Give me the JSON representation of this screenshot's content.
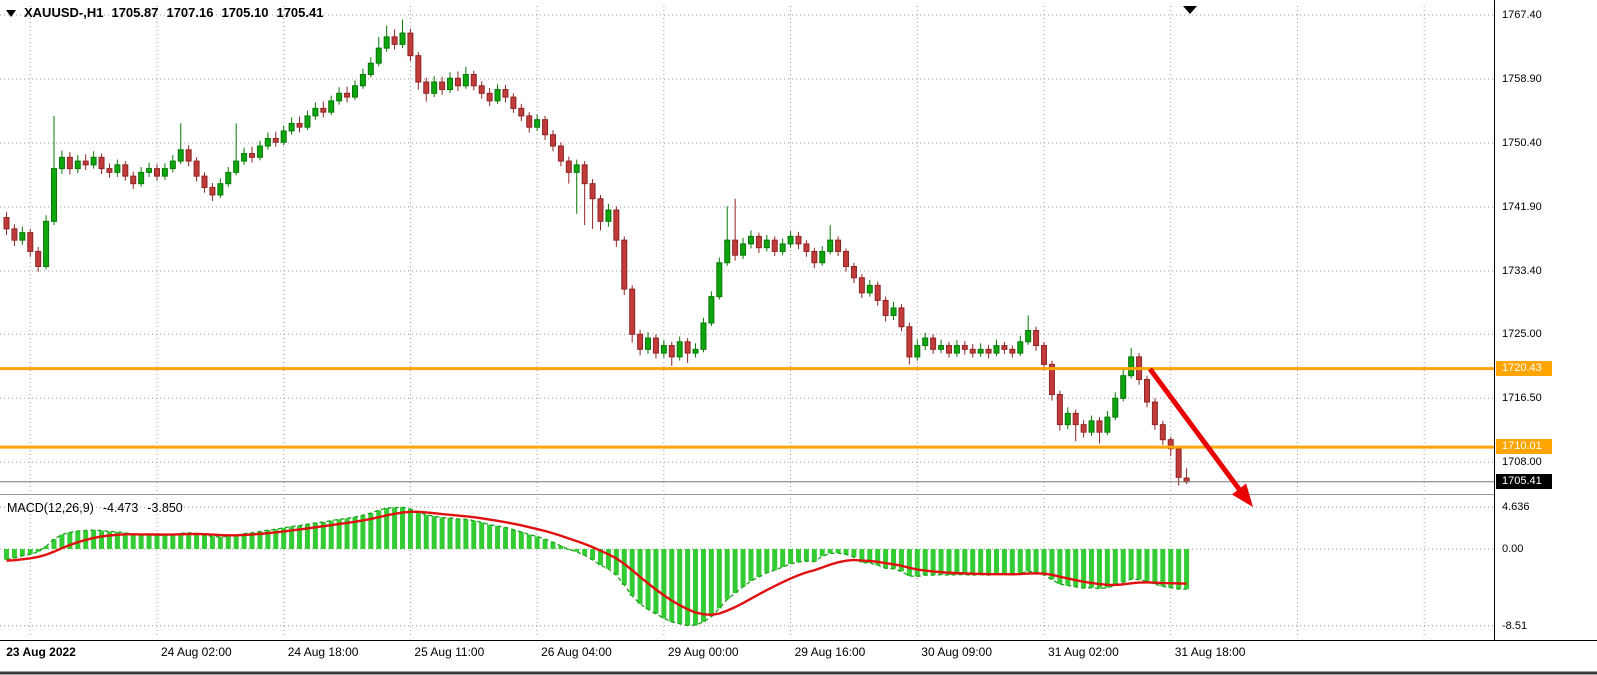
{
  "header": {
    "symbol_period": "XAUUSD-,H1",
    "open": "1705.87",
    "high": "1707.16",
    "low": "1705.10",
    "close": "1705.41"
  },
  "macd_panel": {
    "title": "MACD(12,26,9)",
    "macd_value": "-4.473",
    "signal_value": "-3.850"
  },
  "colors": {
    "bull": "#0FA50F",
    "bull_dark": "#067806",
    "bear": "#C13B3B",
    "bear_dark": "#8F2525",
    "histogram": "#33CC33",
    "signal_line": "#E01010",
    "macd_line": "#1E9E1E",
    "level": "#FFA500",
    "bid_line": "#777777",
    "bid_box": "#000000",
    "grid": "#9A9A9A",
    "arrow": "#E80202",
    "axis_border": "#000000",
    "splitter": "#999999"
  },
  "annotations": {
    "trend_arrow": {
      "from": [
        1150,
        369
      ],
      "to": [
        1239,
        489
      ],
      "tip": [
        1253,
        507
      ]
    }
  },
  "chart_data": {
    "type": "candlestick",
    "title": "XAUUSD-,H1",
    "symbol": "XAUUSD",
    "timeframe": "H1",
    "current_ohlc": {
      "open": 1705.87,
      "high": 1707.16,
      "low": 1705.1,
      "close": 1705.41
    },
    "price_axis": {
      "labels": [
        "1767.40",
        "1758.90",
        "1750.40",
        "1741.90",
        "1733.40",
        "1725.00",
        "1716.50",
        "1708.00"
      ],
      "values": [
        1767.4,
        1758.9,
        1750.4,
        1741.9,
        1733.4,
        1725.0,
        1716.5,
        1708.0
      ]
    },
    "time_axis": [
      {
        "label": "23 Aug 2022",
        "index": 3,
        "bold": true
      },
      {
        "label": "24 Aug 02:00",
        "index": 19
      },
      {
        "label": "24 Aug 18:00",
        "index": 35
      },
      {
        "label": "25 Aug 11:00",
        "index": 51
      },
      {
        "label": "26 Aug 04:00",
        "index": 67
      },
      {
        "label": "29 Aug 00:00",
        "index": 83
      },
      {
        "label": "29 Aug 16:00",
        "index": 99
      },
      {
        "label": "30 Aug 09:00",
        "index": 115
      },
      {
        "label": "31 Aug 02:00",
        "index": 131
      },
      {
        "label": "31 Aug 18:00",
        "index": 147
      },
      {
        "label": "",
        "index": 163
      },
      {
        "label": "",
        "index": 179
      }
    ],
    "levels": [
      {
        "label": "1720.43",
        "value": 1720.43
      },
      {
        "label": "1710.01",
        "value": 1710.01
      }
    ],
    "current_price": {
      "label": "1705.41",
      "value": 1705.41
    },
    "candles_ohlc": [
      [
        1740.5,
        1741.2,
        1738.2,
        1739.0
      ],
      [
        1739.0,
        1739.6,
        1736.7,
        1737.5
      ],
      [
        1737.5,
        1739.3,
        1736.9,
        1738.5
      ],
      [
        1738.5,
        1739.0,
        1735.3,
        1736.0
      ],
      [
        1736.0,
        1736.6,
        1733.3,
        1734.0
      ],
      [
        1734.0,
        1740.8,
        1733.6,
        1740.0
      ],
      [
        1740.0,
        1754.0,
        1739.5,
        1747.0
      ],
      [
        1747.0,
        1749.4,
        1746.3,
        1748.5
      ],
      [
        1748.5,
        1749.2,
        1746.2,
        1747.0
      ],
      [
        1747.0,
        1748.8,
        1746.4,
        1748.0
      ],
      [
        1748.0,
        1748.9,
        1746.8,
        1747.5
      ],
      [
        1747.5,
        1749.3,
        1747.0,
        1748.5
      ],
      [
        1748.5,
        1749.0,
        1746.3,
        1747.0
      ],
      [
        1747.0,
        1747.7,
        1745.8,
        1746.5
      ],
      [
        1746.5,
        1748.2,
        1745.9,
        1747.5
      ],
      [
        1747.5,
        1748.0,
        1745.4,
        1746.0
      ],
      [
        1746.0,
        1746.6,
        1744.3,
        1745.0
      ],
      [
        1745.0,
        1747.2,
        1744.6,
        1746.5
      ],
      [
        1746.5,
        1747.8,
        1745.9,
        1747.0
      ],
      [
        1747.0,
        1747.6,
        1745.4,
        1746.0
      ],
      [
        1746.0,
        1747.7,
        1745.5,
        1747.0
      ],
      [
        1747.0,
        1748.8,
        1746.5,
        1748.0
      ],
      [
        1748.0,
        1753.0,
        1747.6,
        1749.5
      ],
      [
        1749.5,
        1750.1,
        1747.3,
        1748.0
      ],
      [
        1748.0,
        1748.5,
        1745.3,
        1746.0
      ],
      [
        1746.0,
        1746.5,
        1743.8,
        1744.5
      ],
      [
        1744.5,
        1745.1,
        1742.7,
        1743.5
      ],
      [
        1743.5,
        1745.7,
        1743.1,
        1745.0
      ],
      [
        1745.0,
        1747.2,
        1744.6,
        1746.5
      ],
      [
        1746.5,
        1753.0,
        1746.1,
        1748.0
      ],
      [
        1748.0,
        1749.8,
        1747.5,
        1749.0
      ],
      [
        1749.0,
        1749.9,
        1747.8,
        1748.5
      ],
      [
        1748.5,
        1750.7,
        1748.1,
        1750.0
      ],
      [
        1750.0,
        1751.8,
        1749.5,
        1751.0
      ],
      [
        1751.0,
        1751.9,
        1749.9,
        1750.5
      ],
      [
        1750.5,
        1752.7,
        1750.1,
        1752.0
      ],
      [
        1752.0,
        1753.8,
        1751.5,
        1753.0
      ],
      [
        1753.0,
        1753.9,
        1751.8,
        1752.5
      ],
      [
        1752.5,
        1754.7,
        1752.1,
        1754.0
      ],
      [
        1754.0,
        1755.8,
        1753.5,
        1755.0
      ],
      [
        1755.0,
        1755.9,
        1753.8,
        1754.5
      ],
      [
        1754.5,
        1756.7,
        1754.1,
        1756.0
      ],
      [
        1756.0,
        1757.8,
        1755.5,
        1757.0
      ],
      [
        1757.0,
        1757.9,
        1755.8,
        1756.5
      ],
      [
        1756.5,
        1758.7,
        1756.1,
        1758.0
      ],
      [
        1758.0,
        1760.3,
        1757.6,
        1759.5
      ],
      [
        1759.5,
        1761.8,
        1759.1,
        1761.0
      ],
      [
        1761.0,
        1764.5,
        1760.6,
        1763.0
      ],
      [
        1763.0,
        1766.0,
        1762.5,
        1764.5
      ],
      [
        1764.5,
        1765.5,
        1762.8,
        1763.5
      ],
      [
        1763.5,
        1766.8,
        1763.0,
        1765.0
      ],
      [
        1765.0,
        1765.6,
        1761.3,
        1762.0
      ],
      [
        1762.0,
        1762.5,
        1757.5,
        1758.5
      ],
      [
        1758.5,
        1759.1,
        1755.9,
        1757.0
      ],
      [
        1757.0,
        1759.3,
        1756.5,
        1758.5
      ],
      [
        1758.5,
        1759.2,
        1756.8,
        1757.5
      ],
      [
        1757.5,
        1759.8,
        1757.0,
        1759.0
      ],
      [
        1759.0,
        1759.9,
        1757.3,
        1758.0
      ],
      [
        1758.0,
        1760.5,
        1757.6,
        1759.5
      ],
      [
        1759.5,
        1760.0,
        1757.4,
        1758.0
      ],
      [
        1758.0,
        1758.6,
        1756.3,
        1757.0
      ],
      [
        1757.0,
        1757.7,
        1755.3,
        1756.0
      ],
      [
        1756.0,
        1758.2,
        1755.6,
        1757.5
      ],
      [
        1757.5,
        1758.1,
        1755.8,
        1756.5
      ],
      [
        1756.5,
        1757.0,
        1754.4,
        1755.0
      ],
      [
        1755.0,
        1755.6,
        1753.3,
        1754.0
      ],
      [
        1754.0,
        1754.5,
        1751.8,
        1752.5
      ],
      [
        1752.5,
        1754.2,
        1752.0,
        1753.5
      ],
      [
        1753.5,
        1754.0,
        1750.8,
        1751.5
      ],
      [
        1751.5,
        1752.1,
        1749.3,
        1750.0
      ],
      [
        1750.0,
        1750.5,
        1747.3,
        1748.0
      ],
      [
        1748.0,
        1748.6,
        1745.0,
        1746.5
      ],
      [
        1746.5,
        1748.2,
        1741.0,
        1747.5
      ],
      [
        1747.5,
        1748.0,
        1739.5,
        1745.0
      ],
      [
        1745.0,
        1745.6,
        1739.0,
        1743.0
      ],
      [
        1743.0,
        1743.5,
        1738.8,
        1740.0
      ],
      [
        1740.0,
        1742.3,
        1739.3,
        1741.5
      ],
      [
        1741.5,
        1742.0,
        1736.6,
        1737.5
      ],
      [
        1737.5,
        1738.0,
        1730.2,
        1731.0
      ],
      [
        1731.0,
        1731.5,
        1723.9,
        1725.0
      ],
      [
        1725.0,
        1725.6,
        1722.2,
        1723.0
      ],
      [
        1723.0,
        1725.3,
        1722.4,
        1724.5
      ],
      [
        1724.5,
        1725.0,
        1721.8,
        1722.5
      ],
      [
        1722.5,
        1724.2,
        1721.9,
        1723.5
      ],
      [
        1723.5,
        1724.0,
        1720.8,
        1722.0
      ],
      [
        1722.0,
        1724.7,
        1721.5,
        1724.0
      ],
      [
        1724.0,
        1724.5,
        1721.2,
        1722.5
      ],
      [
        1722.5,
        1723.8,
        1721.9,
        1723.0
      ],
      [
        1723.0,
        1727.2,
        1722.6,
        1726.5
      ],
      [
        1726.5,
        1730.7,
        1726.1,
        1730.0
      ],
      [
        1730.0,
        1735.2,
        1729.6,
        1734.5
      ],
      [
        1734.5,
        1742.0,
        1734.1,
        1737.5
      ],
      [
        1737.5,
        1743.0,
        1734.8,
        1735.5
      ],
      [
        1735.5,
        1737.8,
        1735.0,
        1737.0
      ],
      [
        1737.0,
        1738.8,
        1736.4,
        1738.0
      ],
      [
        1738.0,
        1738.5,
        1735.8,
        1736.5
      ],
      [
        1736.5,
        1738.2,
        1736.0,
        1737.5
      ],
      [
        1737.5,
        1738.0,
        1735.4,
        1736.0
      ],
      [
        1736.0,
        1737.7,
        1735.5,
        1737.0
      ],
      [
        1737.0,
        1738.7,
        1736.5,
        1738.0
      ],
      [
        1738.0,
        1738.6,
        1736.3,
        1737.0
      ],
      [
        1737.0,
        1737.5,
        1735.3,
        1736.0
      ],
      [
        1736.0,
        1736.5,
        1733.8,
        1734.5
      ],
      [
        1734.5,
        1736.7,
        1734.1,
        1736.0
      ],
      [
        1736.0,
        1739.5,
        1735.6,
        1737.5
      ],
      [
        1737.5,
        1738.0,
        1735.4,
        1736.0
      ],
      [
        1736.0,
        1736.4,
        1733.3,
        1734.0
      ],
      [
        1734.0,
        1734.5,
        1731.8,
        1732.5
      ],
      [
        1732.5,
        1733.0,
        1729.8,
        1730.5
      ],
      [
        1730.5,
        1732.2,
        1730.0,
        1731.5
      ],
      [
        1731.5,
        1732.0,
        1728.8,
        1729.5
      ],
      [
        1729.5,
        1730.0,
        1726.7,
        1727.5
      ],
      [
        1727.5,
        1729.3,
        1726.9,
        1728.5
      ],
      [
        1728.5,
        1729.0,
        1725.4,
        1726.0
      ],
      [
        1726.0,
        1726.5,
        1721.0,
        1722.0
      ],
      [
        1722.0,
        1724.3,
        1721.5,
        1723.5
      ],
      [
        1723.5,
        1725.2,
        1722.9,
        1724.5
      ],
      [
        1724.5,
        1725.0,
        1722.4,
        1723.0
      ],
      [
        1723.0,
        1724.3,
        1722.5,
        1723.5
      ],
      [
        1723.5,
        1724.0,
        1721.9,
        1722.5
      ],
      [
        1722.5,
        1724.2,
        1722.0,
        1723.5
      ],
      [
        1723.5,
        1724.1,
        1722.3,
        1723.0
      ],
      [
        1723.0,
        1723.7,
        1721.9,
        1722.5
      ],
      [
        1722.5,
        1723.8,
        1722.0,
        1723.0
      ],
      [
        1723.0,
        1723.6,
        1721.8,
        1722.5
      ],
      [
        1722.5,
        1724.3,
        1722.1,
        1723.5
      ],
      [
        1723.5,
        1724.0,
        1722.4,
        1723.0
      ],
      [
        1723.0,
        1723.5,
        1721.9,
        1722.5
      ],
      [
        1722.5,
        1724.8,
        1722.1,
        1724.0
      ],
      [
        1724.0,
        1727.5,
        1723.6,
        1725.5
      ],
      [
        1725.5,
        1726.0,
        1722.8,
        1723.5
      ],
      [
        1723.5,
        1724.0,
        1720.3,
        1721.0
      ],
      [
        1721.0,
        1721.5,
        1716.2,
        1717.0
      ],
      [
        1717.0,
        1717.5,
        1712.2,
        1713.0
      ],
      [
        1713.0,
        1715.3,
        1712.4,
        1714.5
      ],
      [
        1714.5,
        1715.0,
        1710.8,
        1713.0
      ],
      [
        1713.0,
        1713.6,
        1711.3,
        1712.0
      ],
      [
        1712.0,
        1714.2,
        1711.5,
        1713.5
      ],
      [
        1713.5,
        1714.0,
        1710.5,
        1712.0
      ],
      [
        1712.0,
        1714.8,
        1711.6,
        1714.0
      ],
      [
        1714.0,
        1717.3,
        1713.6,
        1716.5
      ],
      [
        1716.5,
        1720.3,
        1716.1,
        1719.5
      ],
      [
        1719.5,
        1723.2,
        1719.1,
        1722.0
      ],
      [
        1722.0,
        1722.5,
        1718.3,
        1719.0
      ],
      [
        1719.0,
        1719.5,
        1715.3,
        1716.0
      ],
      [
        1716.0,
        1716.5,
        1712.3,
        1713.0
      ],
      [
        1713.0,
        1713.5,
        1710.3,
        1711.0
      ],
      [
        1711.0,
        1711.4,
        1708.8,
        1709.8
      ],
      [
        1709.8,
        1710.0,
        1704.9,
        1706.0
      ],
      [
        1705.9,
        1707.2,
        1705.1,
        1705.4
      ]
    ],
    "indicator": {
      "name": "MACD",
      "params": "12,26,9",
      "current_macd": -4.473,
      "current_signal": -3.85,
      "axis_labels": [
        "4.636",
        "0.00",
        "-8.51"
      ],
      "axis_values": [
        4.636,
        0,
        -8.51
      ],
      "histogram": [
        -1.2,
        -1.0,
        -0.75,
        -0.6,
        -0.3,
        0.3,
        1.1,
        1.6,
        1.85,
        2.0,
        2.05,
        2.1,
        2.05,
        1.95,
        1.9,
        1.8,
        1.65,
        1.6,
        1.6,
        1.55,
        1.55,
        1.6,
        1.75,
        1.8,
        1.7,
        1.55,
        1.4,
        1.35,
        1.4,
        1.55,
        1.7,
        1.8,
        1.95,
        2.1,
        2.2,
        2.35,
        2.5,
        2.6,
        2.75,
        2.9,
        3.0,
        3.15,
        3.3,
        3.4,
        3.55,
        3.75,
        4.0,
        4.3,
        4.55,
        4.6,
        4.64,
        4.45,
        4.1,
        3.8,
        3.65,
        3.5,
        3.45,
        3.35,
        3.3,
        3.15,
        2.95,
        2.7,
        2.55,
        2.4,
        2.15,
        1.9,
        1.6,
        1.4,
        1.1,
        0.75,
        0.35,
        -0.05,
        -0.3,
        -0.7,
        -1.2,
        -1.8,
        -2.2,
        -2.9,
        -4.0,
        -5.2,
        -6.1,
        -6.7,
        -7.2,
        -7.7,
        -8.1,
        -8.3,
        -8.51,
        -8.45,
        -8.1,
        -7.5,
        -6.6,
        -5.6,
        -4.9,
        -4.2,
        -3.55,
        -3.1,
        -2.65,
        -2.35,
        -2.0,
        -1.65,
        -1.45,
        -1.35,
        -1.4,
        -0.8,
        -0.5,
        -0.45,
        -0.6,
        -0.9,
        -1.5,
        -1.55,
        -1.8,
        -2.15,
        -2.2,
        -2.5,
        -3.0,
        -3.05,
        -2.9,
        -2.9,
        -2.85,
        -2.9,
        -2.85,
        -2.85,
        -2.9,
        -2.85,
        -2.9,
        -2.8,
        -2.8,
        -2.85,
        -2.7,
        -2.5,
        -2.6,
        -2.9,
        -3.4,
        -3.9,
        -4.05,
        -4.2,
        -4.35,
        -4.3,
        -4.4,
        -4.3,
        -4.05,
        -3.7,
        -3.35,
        -3.4,
        -3.6,
        -3.9,
        -4.15,
        -4.3,
        -4.45,
        -4.47
      ],
      "signal": [
        -1.3,
        -1.24,
        -1.14,
        -1.03,
        -0.88,
        -0.64,
        -0.29,
        0.09,
        0.44,
        0.75,
        1.01,
        1.23,
        1.39,
        1.5,
        1.58,
        1.63,
        1.63,
        1.62,
        1.62,
        1.61,
        1.6,
        1.6,
        1.63,
        1.66,
        1.67,
        1.65,
        1.6,
        1.55,
        1.52,
        1.52,
        1.56,
        1.61,
        1.68,
        1.76,
        1.85,
        1.95,
        2.06,
        2.17,
        2.28,
        2.41,
        2.53,
        2.65,
        2.78,
        2.9,
        3.03,
        3.18,
        3.34,
        3.53,
        3.74,
        3.91,
        4.05,
        4.13,
        4.13,
        4.06,
        3.98,
        3.88,
        3.8,
        3.71,
        3.63,
        3.53,
        3.41,
        3.27,
        3.13,
        2.98,
        2.81,
        2.63,
        2.42,
        2.22,
        2.0,
        1.75,
        1.47,
        1.17,
        0.87,
        0.56,
        0.21,
        -0.19,
        -0.59,
        -1.05,
        -1.64,
        -2.35,
        -3.1,
        -3.82,
        -4.5,
        -5.14,
        -5.73,
        -6.24,
        -6.7,
        -7.05,
        -7.26,
        -7.31,
        -7.17,
        -6.85,
        -6.46,
        -6.01,
        -5.52,
        -5.03,
        -4.56,
        -4.12,
        -3.69,
        -3.28,
        -2.92,
        -2.6,
        -2.36,
        -2.05,
        -1.74,
        -1.48,
        -1.3,
        -1.22,
        -1.28,
        -1.33,
        -1.42,
        -1.57,
        -1.7,
        -1.86,
        -2.09,
        -2.28,
        -2.4,
        -2.5,
        -2.57,
        -2.64,
        -2.68,
        -2.71,
        -2.75,
        -2.77,
        -2.8,
        -2.8,
        -2.8,
        -2.81,
        -2.79,
        -2.73,
        -2.7,
        -2.74,
        -2.87,
        -3.08,
        -3.27,
        -3.46,
        -3.64,
        -3.77,
        -3.9,
        -3.98,
        -3.99,
        -3.93,
        -3.81,
        -3.73,
        -3.7,
        -3.74,
        -3.78,
        -3.8,
        -3.83,
        -3.85
      ]
    }
  }
}
